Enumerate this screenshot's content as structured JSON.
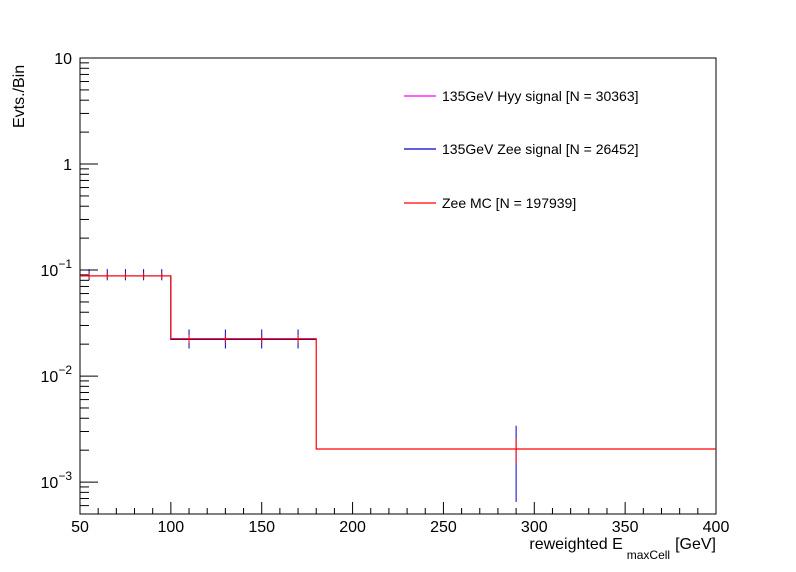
{
  "chart_data": {
    "type": "line",
    "title": "",
    "xlabel": {
      "prefix": "reweighted E",
      "subscript": "maxCell",
      "suffix": "[GeV]"
    },
    "ylabel": "Evts./Bin",
    "xlim": [
      50,
      400
    ],
    "ylim": [
      0.0005,
      10
    ],
    "yscale": "log",
    "grid": false,
    "x_ticks": [
      50,
      100,
      150,
      200,
      250,
      300,
      350,
      400
    ],
    "x_tick_labels": [
      "50",
      "100",
      "150",
      "200",
      "250",
      "300",
      "350",
      "400"
    ],
    "y_ticks": [
      0.001,
      0.01,
      0.1,
      1,
      10
    ],
    "y_tick_labels": [
      {
        "base": "10",
        "exp": "−3"
      },
      {
        "base": "10",
        "exp": "−2"
      },
      {
        "base": "10",
        "exp": "−1"
      },
      {
        "base": "1",
        "exp": ""
      },
      {
        "base": "10",
        "exp": ""
      }
    ],
    "legend_position": "top-right",
    "series": [
      {
        "name": "135GeV Hyy signal [N = 30363]",
        "color": "#ff00ff",
        "steps": [],
        "errors": []
      },
      {
        "name": "135GeV Zee signal [N = 26452]",
        "color": "#0000cc",
        "steps": [
          {
            "x0": 50,
            "x1": 100,
            "y": 0.088
          },
          {
            "x0": 100,
            "x1": 180,
            "y": 0.0222
          }
        ],
        "errors": [
          {
            "x": 55,
            "y": 0.088,
            "lo": 0.08,
            "hi": 0.102
          },
          {
            "x": 65,
            "y": 0.088,
            "lo": 0.08,
            "hi": 0.102
          },
          {
            "x": 75,
            "y": 0.088,
            "lo": 0.08,
            "hi": 0.102
          },
          {
            "x": 85,
            "y": 0.088,
            "lo": 0.08,
            "hi": 0.102
          },
          {
            "x": 95,
            "y": 0.088,
            "lo": 0.08,
            "hi": 0.102
          },
          {
            "x": 110,
            "y": 0.022,
            "lo": 0.0182,
            "hi": 0.0275
          },
          {
            "x": 130,
            "y": 0.022,
            "lo": 0.0182,
            "hi": 0.0275
          },
          {
            "x": 150,
            "y": 0.022,
            "lo": 0.0182,
            "hi": 0.0275
          },
          {
            "x": 170,
            "y": 0.022,
            "lo": 0.0182,
            "hi": 0.0275
          },
          {
            "x": 290,
            "y": 0.002,
            "lo": 0.00065,
            "hi": 0.0034
          }
        ]
      },
      {
        "name": "Zee MC [N = 197939]",
        "color": "#ff0000",
        "steps": [
          {
            "x0": 50,
            "x1": 100,
            "y": 0.088
          },
          {
            "x0": 100,
            "x1": 180,
            "y": 0.0225
          },
          {
            "x0": 180,
            "x1": 400,
            "y": 0.00205
          }
        ],
        "errors": [
          {
            "x": 55,
            "y": 0.088,
            "lo": 0.083,
            "hi": 0.094
          },
          {
            "x": 65,
            "y": 0.088,
            "lo": 0.083,
            "hi": 0.094
          },
          {
            "x": 75,
            "y": 0.088,
            "lo": 0.083,
            "hi": 0.094
          },
          {
            "x": 85,
            "y": 0.088,
            "lo": 0.083,
            "hi": 0.094
          },
          {
            "x": 95,
            "y": 0.088,
            "lo": 0.083,
            "hi": 0.094
          },
          {
            "x": 110,
            "y": 0.0225,
            "lo": 0.0205,
            "hi": 0.0245
          },
          {
            "x": 130,
            "y": 0.0225,
            "lo": 0.0205,
            "hi": 0.0245
          },
          {
            "x": 150,
            "y": 0.0225,
            "lo": 0.0205,
            "hi": 0.0245
          },
          {
            "x": 170,
            "y": 0.0225,
            "lo": 0.0205,
            "hi": 0.0245
          },
          {
            "x": 290,
            "y": 0.00205,
            "lo": 0.0015,
            "hi": 0.0026
          }
        ]
      }
    ]
  }
}
